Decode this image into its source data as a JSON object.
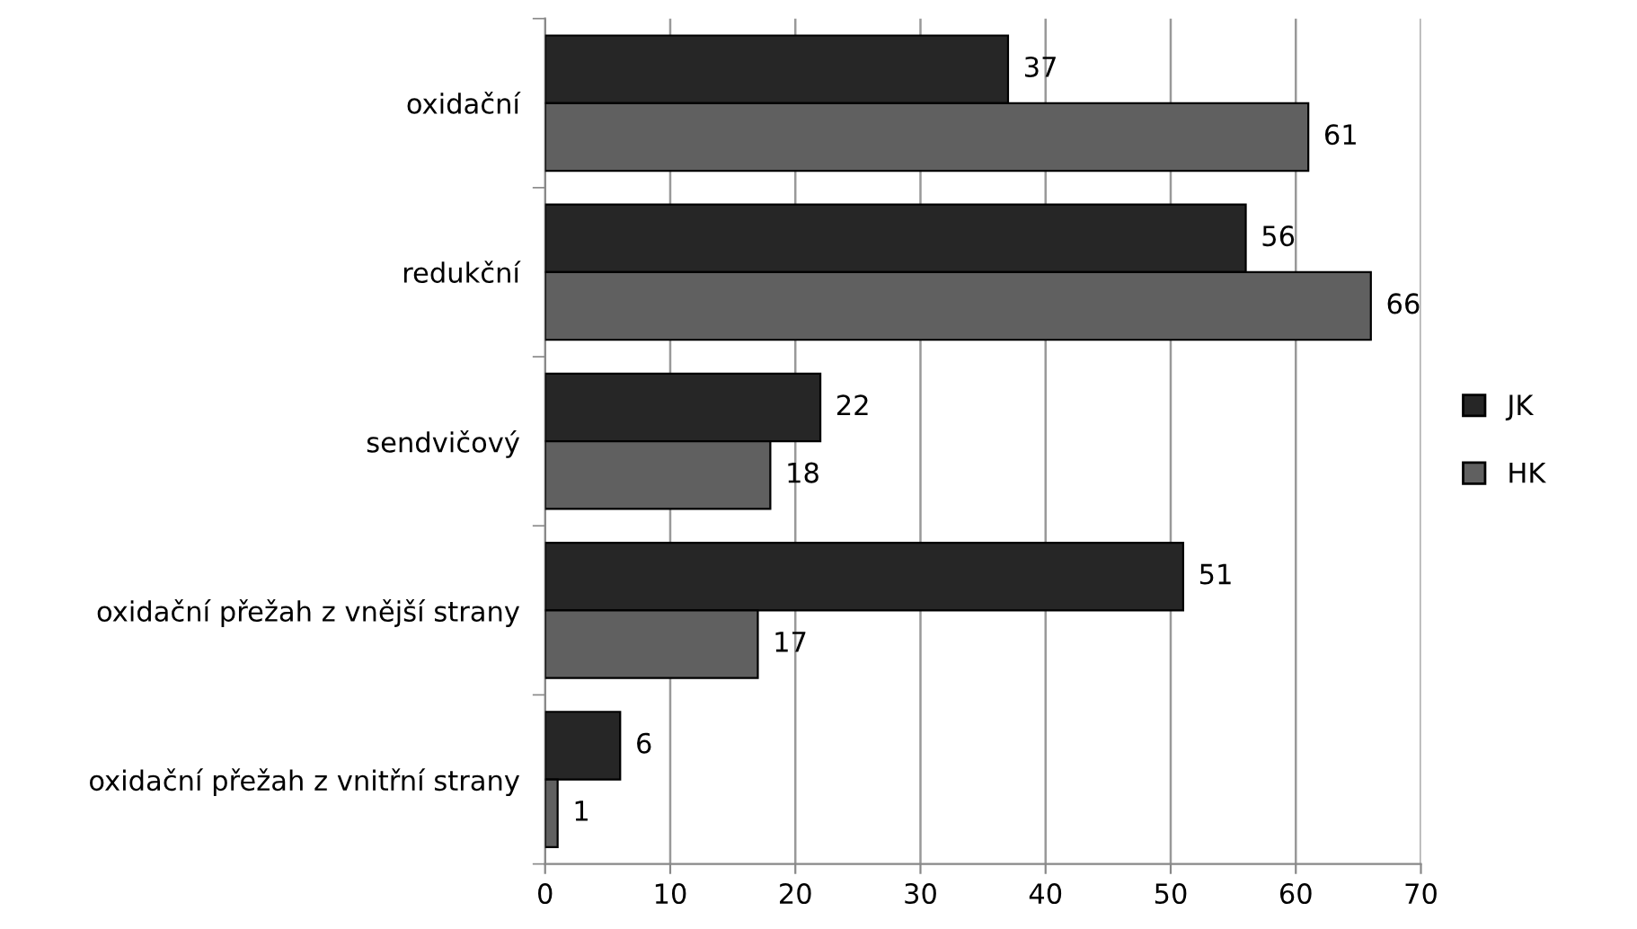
{
  "chart_data": {
    "type": "bar",
    "orientation": "horizontal",
    "categories": [
      "oxidační",
      "redukční",
      "sendvičový",
      "oxidační přežah z vnější strany",
      "oxidační přežah z vnitřní strany"
    ],
    "series": [
      {
        "name": "JK",
        "color": "#262626",
        "values": [
          37,
          56,
          22,
          51,
          6
        ]
      },
      {
        "name": "HK",
        "color": "#606060",
        "values": [
          61,
          66,
          18,
          17,
          1
        ]
      }
    ],
    "xlim": [
      0,
      70
    ],
    "xticks": [
      0,
      10,
      20,
      30,
      40,
      50,
      60,
      70
    ],
    "grid": "x",
    "legend": "right",
    "data_labels": true
  }
}
